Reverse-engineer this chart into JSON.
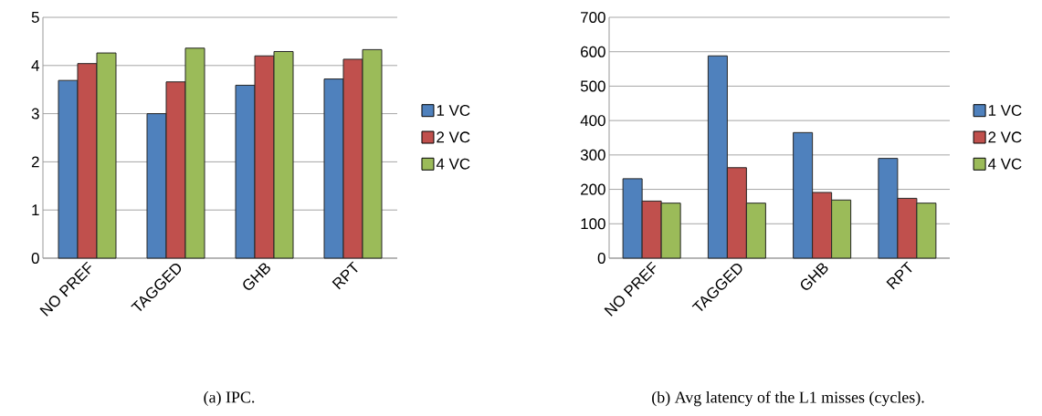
{
  "chart_data": [
    {
      "type": "bar",
      "categories": [
        "NO PREF",
        "TAGGED",
        "GHB",
        "RPT"
      ],
      "series": [
        {
          "name": "1 VC",
          "color": "#4f81bd",
          "values": [
            3.69,
            3.0,
            3.59,
            3.72
          ]
        },
        {
          "name": "2 VC",
          "color": "#c0504d",
          "values": [
            4.04,
            3.66,
            4.2,
            4.13
          ]
        },
        {
          "name": "4 VC",
          "color": "#9bbb59",
          "values": [
            4.26,
            4.36,
            4.29,
            4.33
          ]
        }
      ],
      "ylim": [
        0,
        5
      ],
      "yticks": [
        0,
        1,
        2,
        3,
        4,
        5
      ],
      "grid": "y",
      "legend": "right",
      "annotations": [
        "(a) IPC."
      ]
    },
    {
      "type": "bar",
      "categories": [
        "NO PREF",
        "TAGGED",
        "GHB",
        "RPT"
      ],
      "series": [
        {
          "name": "1 VC",
          "color": "#4f81bd",
          "values": [
            231,
            588,
            365,
            290
          ]
        },
        {
          "name": "2 VC",
          "color": "#c0504d",
          "values": [
            166,
            263,
            191,
            174
          ]
        },
        {
          "name": "4 VC",
          "color": "#9bbb59",
          "values": [
            160,
            160,
            169,
            160
          ]
        }
      ],
      "ylim": [
        0,
        700
      ],
      "yticks": [
        0,
        100,
        200,
        300,
        400,
        500,
        600,
        700
      ],
      "grid": "y",
      "legend": "right",
      "annotations": [
        "(b) Avg latency of the L1 misses (cycles)."
      ]
    }
  ]
}
